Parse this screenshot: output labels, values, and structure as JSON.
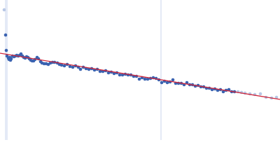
{
  "chart_data": {
    "type": "scatter",
    "xlim": [
      0,
      400
    ],
    "ylim": [
      200,
      0
    ],
    "vlines": {
      "color": "#c8d4ec",
      "x": [
        8,
        10,
        230
      ]
    },
    "fit": {
      "color": "#d0263a",
      "x": [
        0,
        400
      ],
      "values": [
        76,
        142
      ]
    },
    "series": [
      {
        "color": "#3a62b0",
        "x": [
          8,
          9,
          10,
          12,
          13,
          14,
          15,
          16,
          18,
          20,
          22,
          24,
          26,
          28,
          30,
          32,
          34,
          36,
          38,
          40,
          42,
          44,
          46,
          48,
          50,
          53,
          55,
          58,
          60,
          63,
          66,
          69,
          72,
          75,
          78,
          82,
          85,
          88,
          92,
          96,
          100,
          104,
          108,
          112,
          115,
          119,
          123,
          127,
          131,
          135,
          139,
          143,
          147,
          151,
          155,
          159,
          163,
          167,
          171,
          175,
          179,
          183,
          187,
          191,
          195,
          199,
          203,
          207,
          211,
          215,
          219,
          223,
          227,
          231,
          235,
          239,
          243,
          247,
          251,
          255,
          259,
          263,
          267,
          271,
          275,
          279,
          283,
          287,
          291,
          295,
          299,
          303,
          307,
          311,
          315,
          319,
          323,
          327,
          331,
          335
        ],
        "values": [
          50,
          72,
          80,
          83,
          85,
          82,
          86,
          84,
          80,
          81,
          80,
          79,
          80,
          79,
          77,
          80,
          82,
          83,
          81,
          82,
          84,
          86,
          87,
          87,
          85,
          82,
          84,
          88,
          90,
          91,
          91,
          92,
          90,
          89,
          89,
          90,
          92,
          93,
          94,
          92,
          95,
          96,
          94,
          96,
          99,
          96,
          98,
          99,
          98,
          100,
          99,
          102,
          102,
          101,
          104,
          103,
          105,
          104,
          107,
          107,
          106,
          107,
          107,
          109,
          109,
          113,
          111,
          113,
          113,
          112,
          111,
          112,
          114,
          118,
          116,
          118,
          117,
          114,
          119,
          119,
          119,
          121,
          118,
          121,
          121,
          123,
          122,
          124,
          124,
          126,
          126,
          128,
          127,
          129,
          128,
          131,
          129,
          128,
          131,
          131
        ]
      },
      {
        "color": "#b8c8e6",
        "x": [
          6,
          340,
          345,
          350,
          357,
          364,
          372,
          380,
          388,
          395
        ],
        "values": [
          14,
          131,
          132,
          133,
          134,
          135,
          134,
          139,
          140,
          139
        ]
      }
    ]
  }
}
